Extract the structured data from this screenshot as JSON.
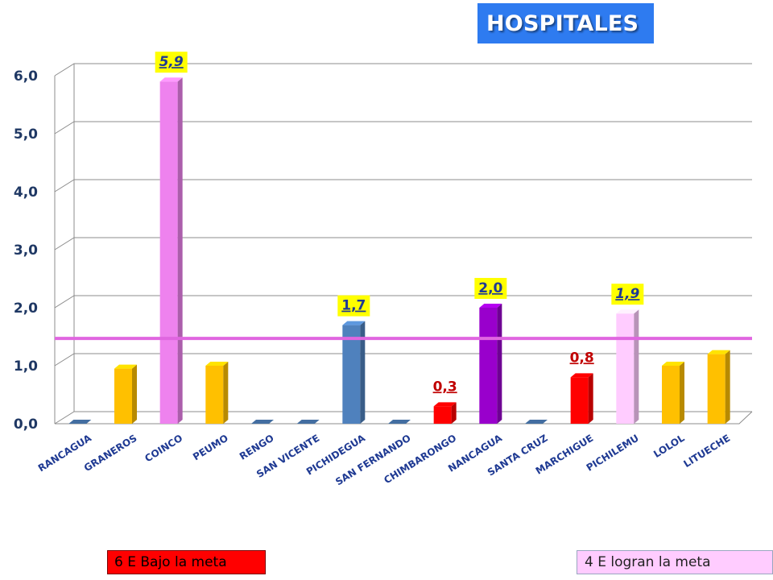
{
  "title": "HOSPITALES",
  "legend": {
    "below_label": "6 E Bajo la meta",
    "meet_label": "4 E logran la meta"
  },
  "colors": {
    "title_bg": "#2e7bf0",
    "below_meta": "#ff0000",
    "meet_meta": "#ffccff",
    "meta_line": "#e066e0",
    "label_highlight": "#ffff00"
  },
  "chart_data": {
    "type": "bar",
    "title": "HOSPITALES",
    "xlabel": "",
    "ylabel": "",
    "ylim": [
      0,
      6
    ],
    "y_ticks": [
      "0,0",
      "1,0",
      "2,0",
      "3,0",
      "4,0",
      "5,0",
      "6,0"
    ],
    "grid": true,
    "meta_line": 1.47,
    "categories": [
      "RANCAGUA",
      "GRANEROS",
      "COINCO",
      "PEUMO",
      "RENGO",
      "SAN VICENTE",
      "PICHIDEGUA",
      "SAN FERNANDO",
      "CHIMBARONGO",
      "NANCAGUA",
      "SANTA CRUZ",
      "MARCHIGUE",
      "PICHILEMU",
      "LOLOL",
      "LITUECHE"
    ],
    "values": [
      0,
      0.95,
      5.9,
      1.0,
      0,
      0,
      1.7,
      0,
      0.3,
      2.0,
      0,
      0.8,
      1.9,
      1.0,
      1.2
    ],
    "bar_colors": [
      "#4f81bd",
      "#ffc000",
      "#ee82ee",
      "#ffc000",
      "#4f81bd",
      "#4f81bd",
      "#4f81bd",
      "#4f81bd",
      "#ff0000",
      "#9900cc",
      "#4f81bd",
      "#ff0000",
      "#ffccff",
      "#ffc000",
      "#ffc000"
    ],
    "data_labels": [
      {
        "index": 2,
        "text": "5,9",
        "color": "#1f3a93",
        "italic": true,
        "highlight": true
      },
      {
        "index": 6,
        "text": "1,7",
        "color": "#1f3a93",
        "italic": false,
        "highlight": true
      },
      {
        "index": 8,
        "text": "0,3",
        "color": "#c00000",
        "italic": false,
        "highlight": false
      },
      {
        "index": 9,
        "text": "2,0",
        "color": "#1f3a93",
        "italic": false,
        "highlight": true
      },
      {
        "index": 11,
        "text": "0,8",
        "color": "#c00000",
        "italic": false,
        "highlight": false
      },
      {
        "index": 12,
        "text": "1,9",
        "color": "#1f3a93",
        "italic": true,
        "highlight": true
      }
    ]
  }
}
